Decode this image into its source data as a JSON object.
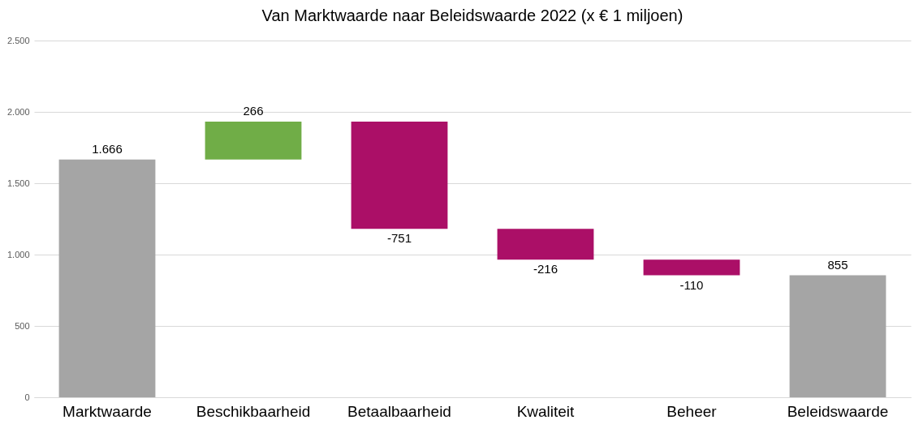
{
  "chart_data": {
    "type": "bar",
    "title": "Van Marktwaarde naar Beleidswaarde 2022 (x € 1 miljoen)",
    "categories": [
      "Marktwaarde",
      "Beschikbaarheid",
      "Betaalbaarheid",
      "Kwaliteit",
      "Beheer",
      "Beleidswaarde"
    ],
    "values": [
      1666,
      266,
      -751,
      -216,
      -110,
      855
    ],
    "base": [
      0,
      1666,
      1932,
      1181,
      965,
      0
    ],
    "colors": [
      "#a5a5a5",
      "#70ad47",
      "#ab0f67",
      "#ab0f67",
      "#ab0f67",
      "#a5a5a5"
    ],
    "value_labels": [
      "1.666",
      "266",
      "-751",
      "-216",
      "-110",
      "855"
    ],
    "ylim": [
      0,
      2500
    ],
    "yticks": [
      {
        "value": 0,
        "label": "0"
      },
      {
        "value": 500,
        "label": "500"
      },
      {
        "value": 1000,
        "label": "1.000"
      },
      {
        "value": 1500,
        "label": "1.500"
      },
      {
        "value": 2000,
        "label": "2.000"
      },
      {
        "value": 2500,
        "label": "2.500"
      }
    ],
    "grid": "y"
  }
}
